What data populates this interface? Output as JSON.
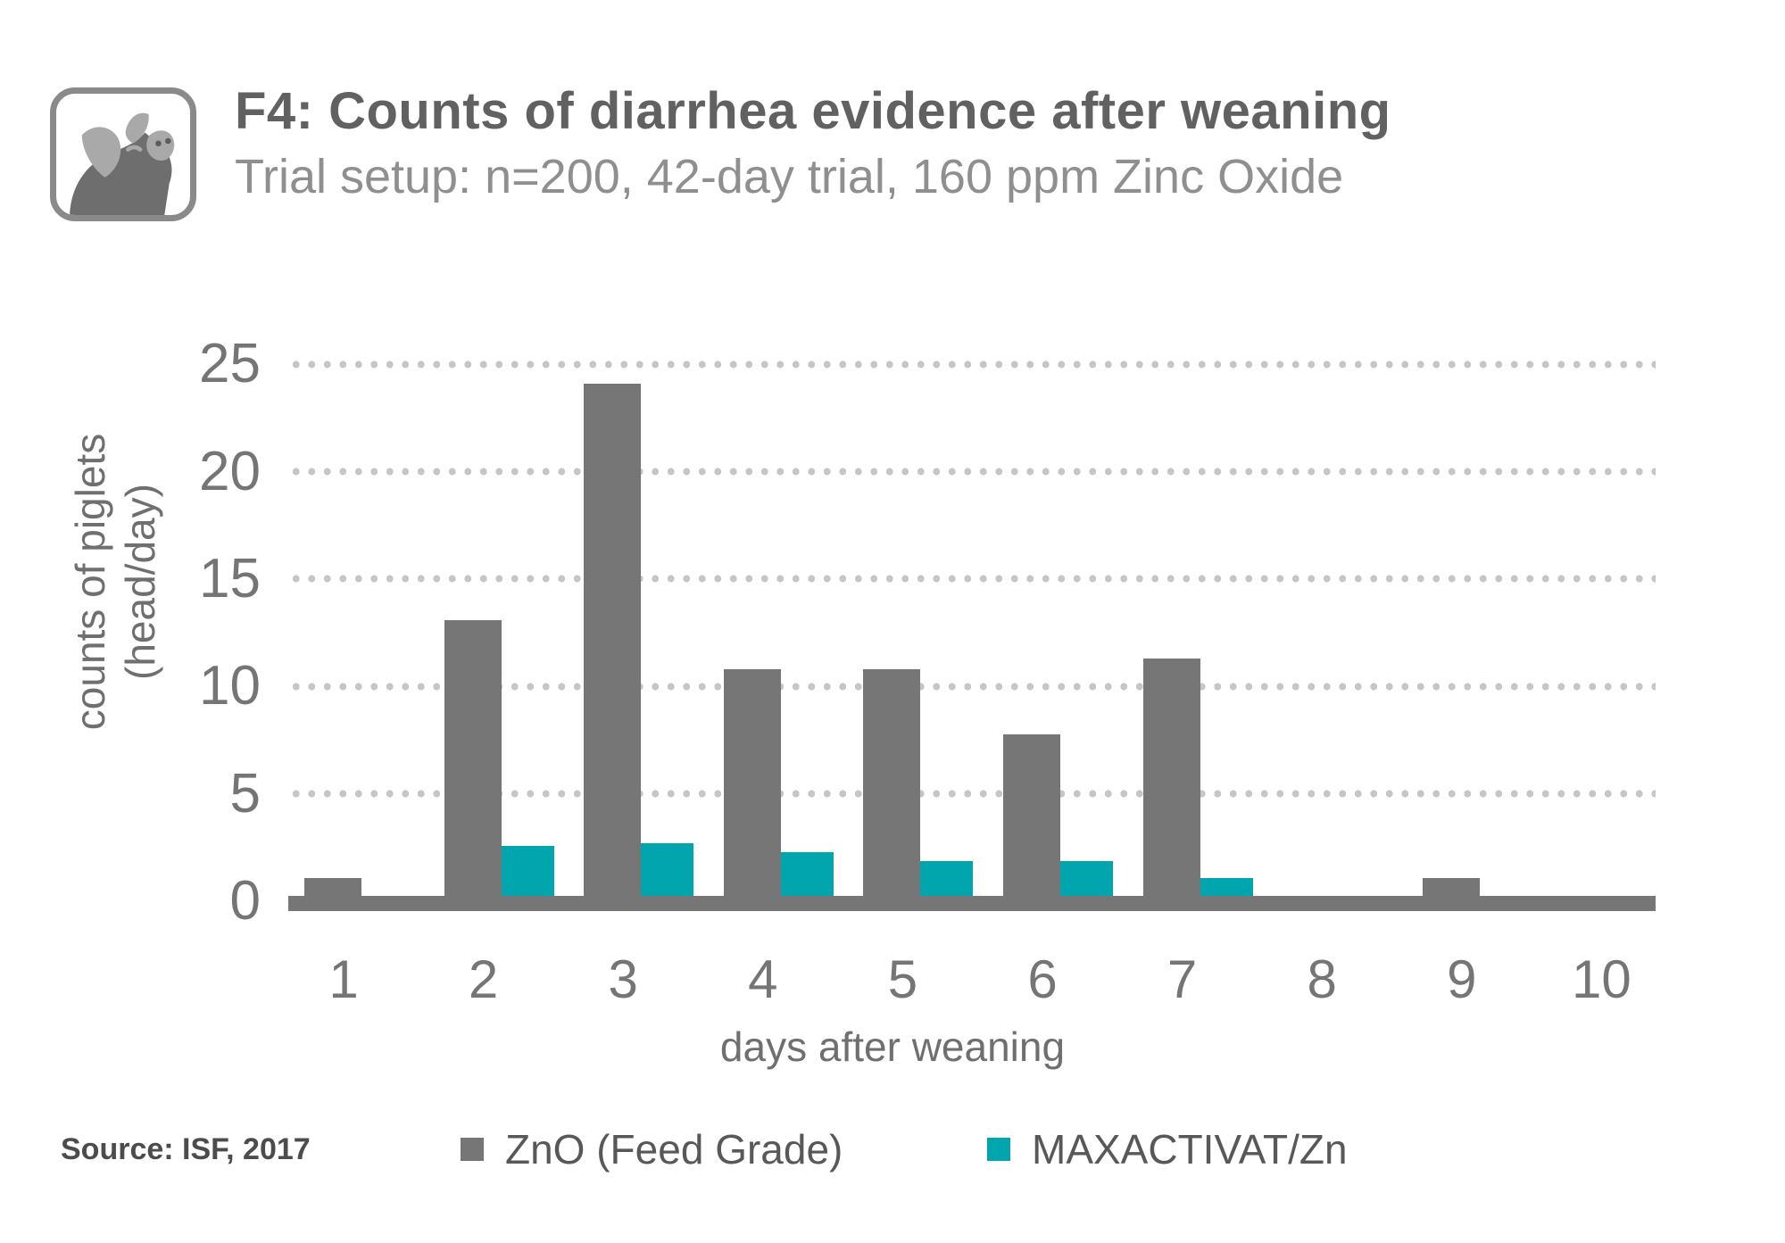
{
  "header": {
    "title": "F4: Counts of diarrhea evidence after weaning",
    "subtitle": "Trial setup: n=200, 42-day trial, 160 ppm Zinc Oxide"
  },
  "source": "Source: ISF, 2017",
  "colors": {
    "bar_gray": "#767676",
    "bar_teal": "#00a5ad",
    "gridline": "#c6c6c6",
    "axis": "#767676"
  },
  "chart_data": {
    "type": "bar",
    "title": "F4: Counts of diarrhea evidence after weaning",
    "subtitle": "Trial setup: n=200, 42-day trial, 160 ppm Zinc Oxide",
    "categories": [
      "1",
      "2",
      "3",
      "4",
      "5",
      "6",
      "7",
      "8",
      "9",
      "10"
    ],
    "series": [
      {
        "name": "ZnO (Feed Grade)",
        "color": "#767676",
        "values": [
          1,
          13,
          24,
          10.7,
          10.7,
          7.7,
          11.2,
          0,
          1,
          0
        ]
      },
      {
        "name": "MAXACTIVAT/Zn",
        "color": "#00a5ad",
        "values": [
          0,
          2.5,
          2.6,
          2.2,
          1.8,
          1.8,
          1,
          0,
          0,
          0
        ]
      }
    ],
    "xlabel": "days after weaning",
    "ylabel": "counts of piglets (head/day)",
    "ylabel_lines": [
      "counts of piglets",
      "(head/day)"
    ],
    "ylim": [
      0,
      25
    ],
    "yticks": [
      0,
      5,
      10,
      15,
      20,
      25
    ],
    "grid": "horizontal-dotted",
    "legend_position": "bottom"
  }
}
